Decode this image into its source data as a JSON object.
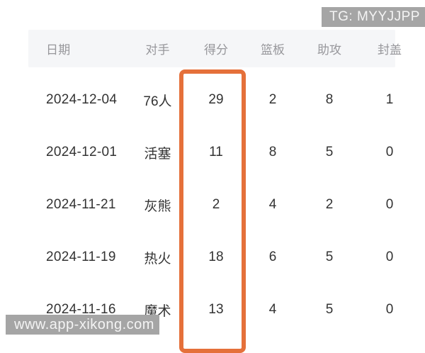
{
  "watermarks": {
    "top_right": "TG: MYYJJPP",
    "bottom_left": "www.app-xikong.com"
  },
  "colors": {
    "highlight_orange": "#e5703a",
    "watermark_gray": "#a5a5a5",
    "header_bg": "#f5f6f8",
    "header_text": "#97979b",
    "body_text": "#333333"
  },
  "table": {
    "columns": [
      "日期",
      "对手",
      "得分",
      "篮板",
      "助攻",
      "封盖"
    ],
    "highlighted_column": "得分",
    "rows": [
      {
        "date": "2024-12-04",
        "opponent": "76人",
        "points": "29",
        "rebounds": "2",
        "assists": "8",
        "blocks": "1"
      },
      {
        "date": "2024-12-01",
        "opponent": "活塞",
        "points": "11",
        "rebounds": "8",
        "assists": "5",
        "blocks": "0"
      },
      {
        "date": "2024-11-21",
        "opponent": "灰熊",
        "points": "2",
        "rebounds": "4",
        "assists": "2",
        "blocks": "0"
      },
      {
        "date": "2024-11-19",
        "opponent": "热火",
        "points": "18",
        "rebounds": "6",
        "assists": "5",
        "blocks": "0"
      },
      {
        "date": "2024-11-16",
        "opponent": "魔术",
        "points": "13",
        "rebounds": "4",
        "assists": "5",
        "blocks": "0"
      }
    ]
  }
}
